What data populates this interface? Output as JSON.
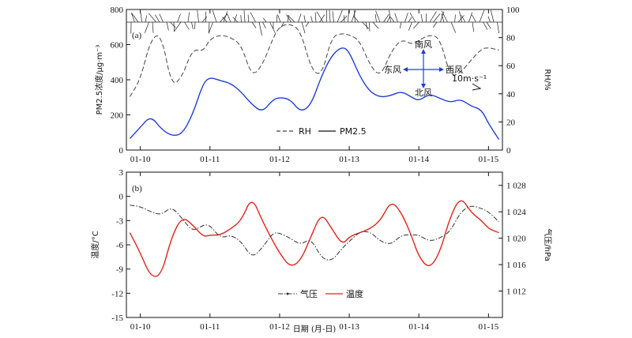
{
  "chart_data": [
    {
      "panel_label": "(a)",
      "type": "line",
      "x_ticks": [
        "01-10",
        "01-11",
        "01-12",
        "01-13",
        "01-14",
        "01-15"
      ],
      "ylabel_left": "PM2.5浓度/μg·m⁻³",
      "ylabel_right": "RH/%",
      "ylim_left": [
        0,
        800
      ],
      "yticks_left": [
        "0",
        "200",
        "400",
        "600",
        "800"
      ],
      "ylim_right": [
        0,
        100
      ],
      "yticks_right": [
        "0",
        "20",
        "40",
        "60",
        "80",
        "100"
      ],
      "legend": [
        {
          "label": "RH",
          "style": "dashed",
          "color": "#444444"
        },
        {
          "label": "PM2.5",
          "style": "solid",
          "color": "#1f3fd6"
        }
      ],
      "wind_rose": {
        "north": "南风",
        "west": "东风",
        "east": "西风",
        "south": "北风",
        "scale": "10m·s⁻¹"
      },
      "x_days": [
        -0.15,
        0.0,
        0.15,
        0.3,
        0.45,
        0.6,
        0.75,
        0.9,
        1.0,
        1.15,
        1.3,
        1.45,
        1.6,
        1.75,
        1.9,
        2.0,
        2.15,
        2.3,
        2.45,
        2.6,
        2.75,
        2.9,
        3.0,
        3.15,
        3.3,
        3.45,
        3.6,
        3.75,
        3.9,
        4.0,
        4.15,
        4.3,
        4.45,
        4.6,
        4.75,
        4.9,
        5.0,
        5.15
      ],
      "series": [
        {
          "name": "PM2.5",
          "axis": "left",
          "values": [
            65,
            130,
            195,
            120,
            80,
            90,
            200,
            380,
            415,
            395,
            380,
            330,
            260,
            215,
            285,
            300,
            290,
            215,
            255,
            420,
            540,
            590,
            560,
            420,
            330,
            300,
            310,
            335,
            300,
            280,
            320,
            295,
            270,
            290,
            250,
            230,
            150,
            60
          ]
        },
        {
          "name": "RH",
          "axis": "right",
          "values": [
            38,
            50,
            79,
            83,
            45,
            52,
            72,
            70,
            79,
            82,
            80,
            75,
            52,
            60,
            79,
            88,
            90,
            85,
            58,
            52,
            81,
            83,
            82,
            78,
            60,
            52,
            70,
            79,
            75,
            78,
            82,
            80,
            52,
            55,
            64,
            72,
            73,
            71
          ]
        }
      ]
    },
    {
      "panel_label": "(b)",
      "type": "line",
      "x_ticks": [
        "01-10",
        "01-11",
        "01-12",
        "01-13",
        "01-14",
        "01-15"
      ],
      "xlabel": "日期 (月-日)",
      "ylabel_left": "温度/°C",
      "ylabel_right": "气压/hPa",
      "ylim_left": [
        -15,
        3
      ],
      "yticks_left": [
        "3",
        "0",
        "-3",
        "-6",
        "-9",
        "-12",
        "-15"
      ],
      "ylim_right": [
        1008,
        1030
      ],
      "yticks_right": [
        "1 028",
        "1 024",
        "1 020",
        "1 016",
        "1 012"
      ],
      "legend": [
        {
          "label": "气压",
          "style": "dash-dot",
          "color": "#333333"
        },
        {
          "label": "温度",
          "style": "solid",
          "color": "#e0241b"
        }
      ],
      "x_days": [
        -0.15,
        0.0,
        0.15,
        0.3,
        0.45,
        0.6,
        0.75,
        0.9,
        1.0,
        1.15,
        1.3,
        1.45,
        1.6,
        1.75,
        1.9,
        2.0,
        2.15,
        2.3,
        2.45,
        2.6,
        2.75,
        2.9,
        3.0,
        3.15,
        3.3,
        3.45,
        3.6,
        3.75,
        3.9,
        4.0,
        4.15,
        4.3,
        4.45,
        4.6,
        4.75,
        4.9,
        5.0,
        5.15
      ],
      "series": [
        {
          "name": "温度",
          "axis": "left",
          "values": [
            -4.5,
            -7,
            -10,
            -9.8,
            -5,
            -2.5,
            -3.5,
            -5,
            -4.8,
            -4.8,
            -4,
            -3,
            0,
            -3,
            -5.5,
            -7,
            -8.8,
            -8,
            -5,
            -2,
            -4,
            -6,
            -5,
            -4.5,
            -4,
            -3,
            -0.5,
            -2,
            -5,
            -7.5,
            -9,
            -7,
            -2.5,
            0,
            -2,
            -3,
            -4,
            -4.5
          ]
        },
        {
          "name": "气压",
          "axis": "right",
          "values": [
            1025,
            1024.8,
            1024,
            1023.5,
            1024.8,
            1023,
            1021,
            1022,
            1022,
            1020,
            1020.5,
            1019.5,
            1017,
            1018.5,
            1020.8,
            1020.8,
            1020,
            1019,
            1020,
            1017,
            1016.5,
            1018.5,
            1019.5,
            1021,
            1021,
            1019.5,
            1019,
            1020.5,
            1020.5,
            1020.5,
            1019.5,
            1020,
            1021,
            1024,
            1025,
            1024.5,
            1024,
            1022.5
          ]
        }
      ]
    }
  ]
}
